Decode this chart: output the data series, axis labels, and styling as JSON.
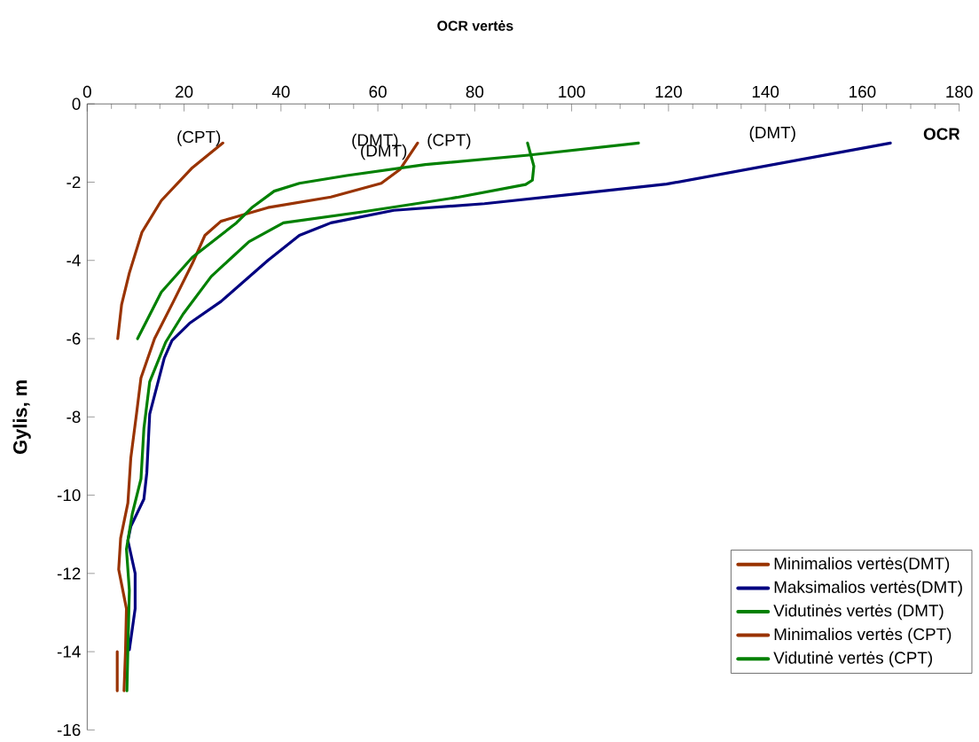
{
  "chart_data": {
    "type": "line",
    "xlabel": "OCR vertės",
    "ylabel": "Gylis, m",
    "xlim": [
      0,
      180
    ],
    "ylim": [
      -16,
      0
    ],
    "xticks": [
      0,
      20,
      40,
      60,
      80,
      100,
      120,
      140,
      160,
      180
    ],
    "yticks": [
      -16,
      -14,
      -12,
      -10,
      -8,
      -6,
      -4,
      -2,
      0
    ],
    "legend": "bottom right",
    "series": [
      {
        "name": "Minimalios vertės(DMT)",
        "color": "#993300",
        "x": [
          68.2,
          64.6,
          60.7,
          50.3,
          37.3,
          27.6,
          24.3,
          21.7,
          17.8,
          13.9,
          11.1,
          10.2,
          9.0,
          8.4,
          6.9,
          6.5,
          8.1,
          7.9,
          7.6
        ],
        "values": [
          -1.0,
          -1.67,
          -2.03,
          -2.38,
          -2.65,
          -3.0,
          -3.36,
          -4.08,
          -5.05,
          -6.0,
          -7.0,
          -7.9,
          -9.05,
          -10.2,
          -11.1,
          -11.9,
          -12.9,
          -14.0,
          -15.0
        ]
      },
      {
        "name": "Maksimalios vertės(DMT)",
        "color": "#000080",
        "x": [
          165.8,
          119.6,
          100.2,
          82,
          63.3,
          50.3,
          43.8,
          37.3,
          27.6,
          21.1,
          17.5,
          15.9,
          12.9,
          12.3,
          11.7,
          9.0,
          8.4,
          9.9,
          9.9,
          8.7
        ],
        "values": [
          -1.0,
          -2.05,
          -2.31,
          -2.55,
          -2.72,
          -3.04,
          -3.36,
          -4.0,
          -5.05,
          -5.61,
          -6.05,
          -6.5,
          -7.93,
          -9.43,
          -10.1,
          -10.8,
          -11.16,
          -12.0,
          -12.9,
          -13.95
        ]
      },
      {
        "name": "Vidutinės vertės (DMT)",
        "color": "#008000",
        "x": [
          90.9,
          92.2,
          91.9,
          90.5,
          76.3,
          56.8,
          40.5,
          33.4,
          25.6,
          19.8,
          16.2,
          12.9,
          11.7,
          11.1,
          9.3,
          8.1,
          8.7,
          8.4,
          8.2
        ],
        "values": [
          -1.0,
          -1.59,
          -1.95,
          -2.06,
          -2.39,
          -2.76,
          -3.04,
          -3.52,
          -4.41,
          -5.37,
          -6.09,
          -7.1,
          -8.3,
          -9.58,
          -10.48,
          -11.38,
          -12.43,
          -13.93,
          -15.0
        ]
      },
      {
        "name": "Minimalios vertės (CPT)",
        "color": "#993300",
        "x": [
          28,
          21.7,
          15.3,
          11.3,
          8.7,
          7.1,
          6.3,
          null,
          6.2,
          6.2
        ],
        "values": [
          -1.0,
          -1.63,
          -2.47,
          -3.28,
          -4.32,
          -5.13,
          -6.0,
          null,
          -14.0,
          -15.0
        ]
      },
      {
        "name": "Vidutinė vertės (CPT)",
        "color": "#008000",
        "x": [
          113.8,
          91.1,
          69.8,
          53.6,
          43.8,
          38.6,
          34.1,
          30.8,
          21.7,
          15.3,
          10.4
        ],
        "values": [
          -1.0,
          -1.31,
          -1.55,
          -1.83,
          -2.03,
          -2.23,
          -2.64,
          -3.04,
          -3.92,
          -4.81,
          -6.0
        ]
      }
    ],
    "annotations": [
      "(CPT)",
      "(DMT)",
      "(DMT)",
      "(CPT)",
      "(DMT)",
      "OCR"
    ]
  }
}
